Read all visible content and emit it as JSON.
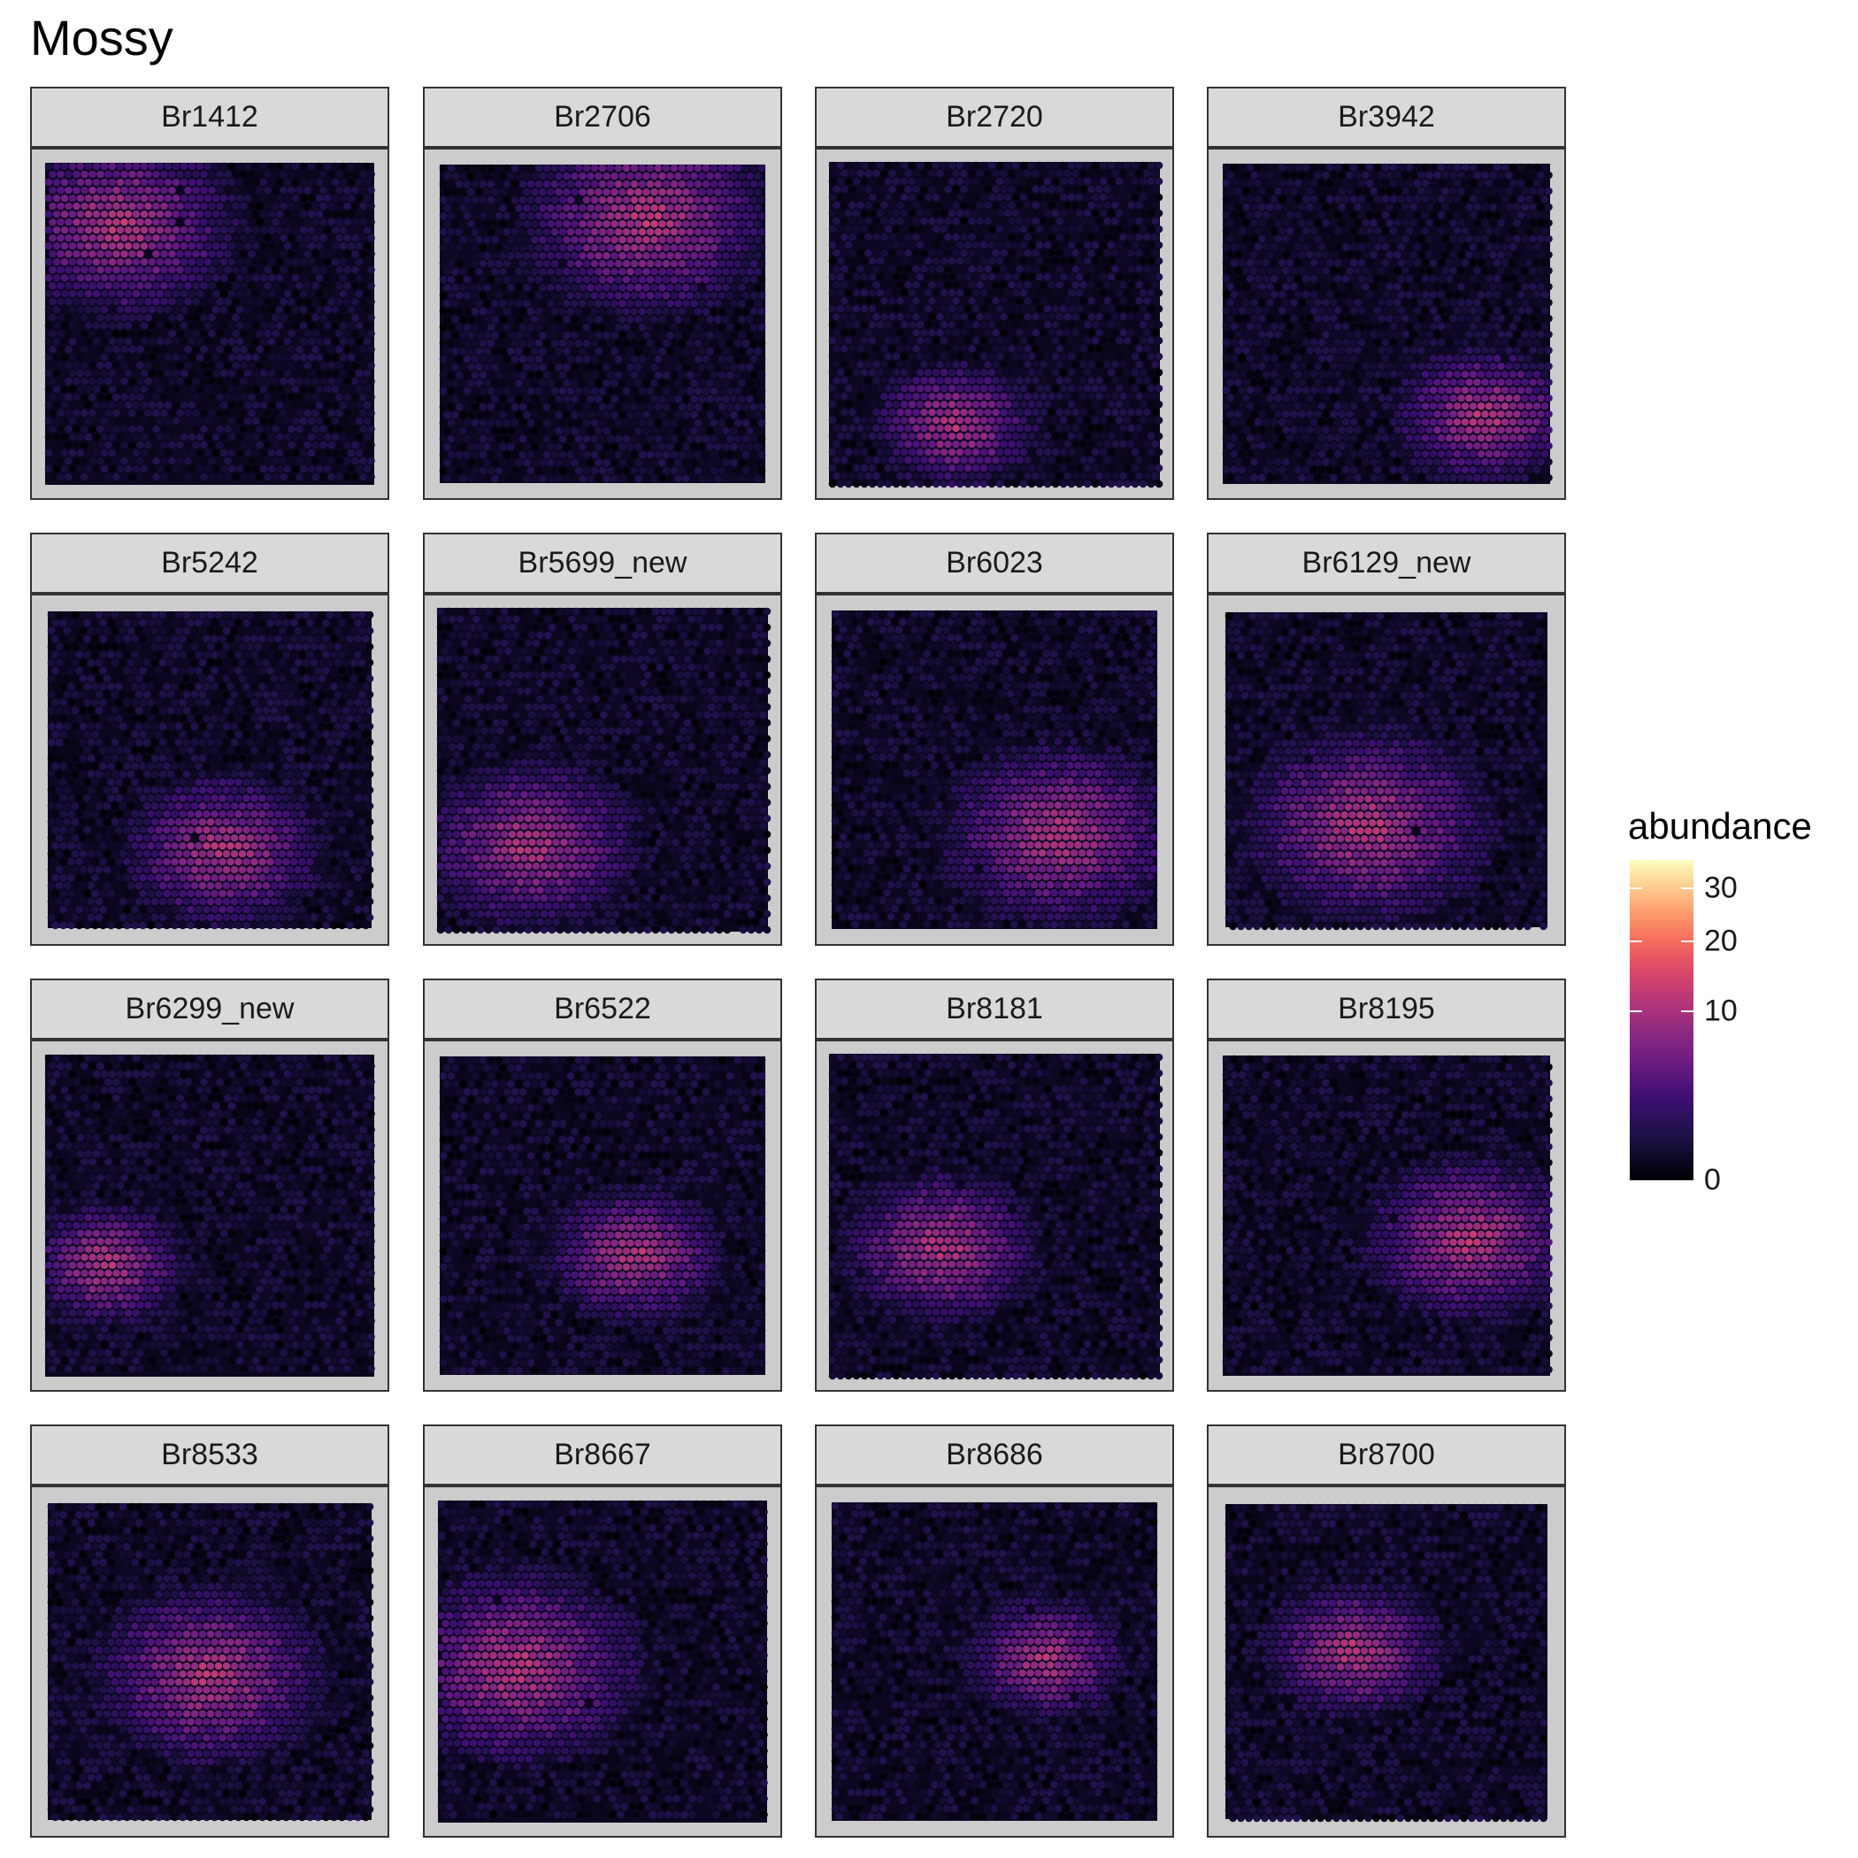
{
  "chart_data": {
    "type": "heatmap",
    "title": "Mossy",
    "facets": [
      "Br1412",
      "Br2706",
      "Br2720",
      "Br3942",
      "Br5242",
      "Br5699_new",
      "Br6023",
      "Br6129_new",
      "Br6299_new",
      "Br6522",
      "Br8181",
      "Br8195",
      "Br8533",
      "Br8667",
      "Br8686",
      "Br8700"
    ],
    "legend": {
      "title": "abundance",
      "placement": "right",
      "ticks": [
        0,
        10,
        20,
        30
      ],
      "tick_labels": [
        "0",
        "10",
        "20",
        "30"
      ],
      "range": [
        0,
        36
      ],
      "scale": "sqrt",
      "colormap": "magma",
      "colors": [
        "#000004",
        "#1d1147",
        "#3b0f70",
        "#641a80",
        "#8c2981",
        "#b73779",
        "#de4968",
        "#f66e5c",
        "#fe9f6d",
        "#fecf92",
        "#fcfdbf"
      ]
    },
    "panel_background": "#cccccc",
    "strip_background": "#d9d9d9",
    "grid": false
  }
}
